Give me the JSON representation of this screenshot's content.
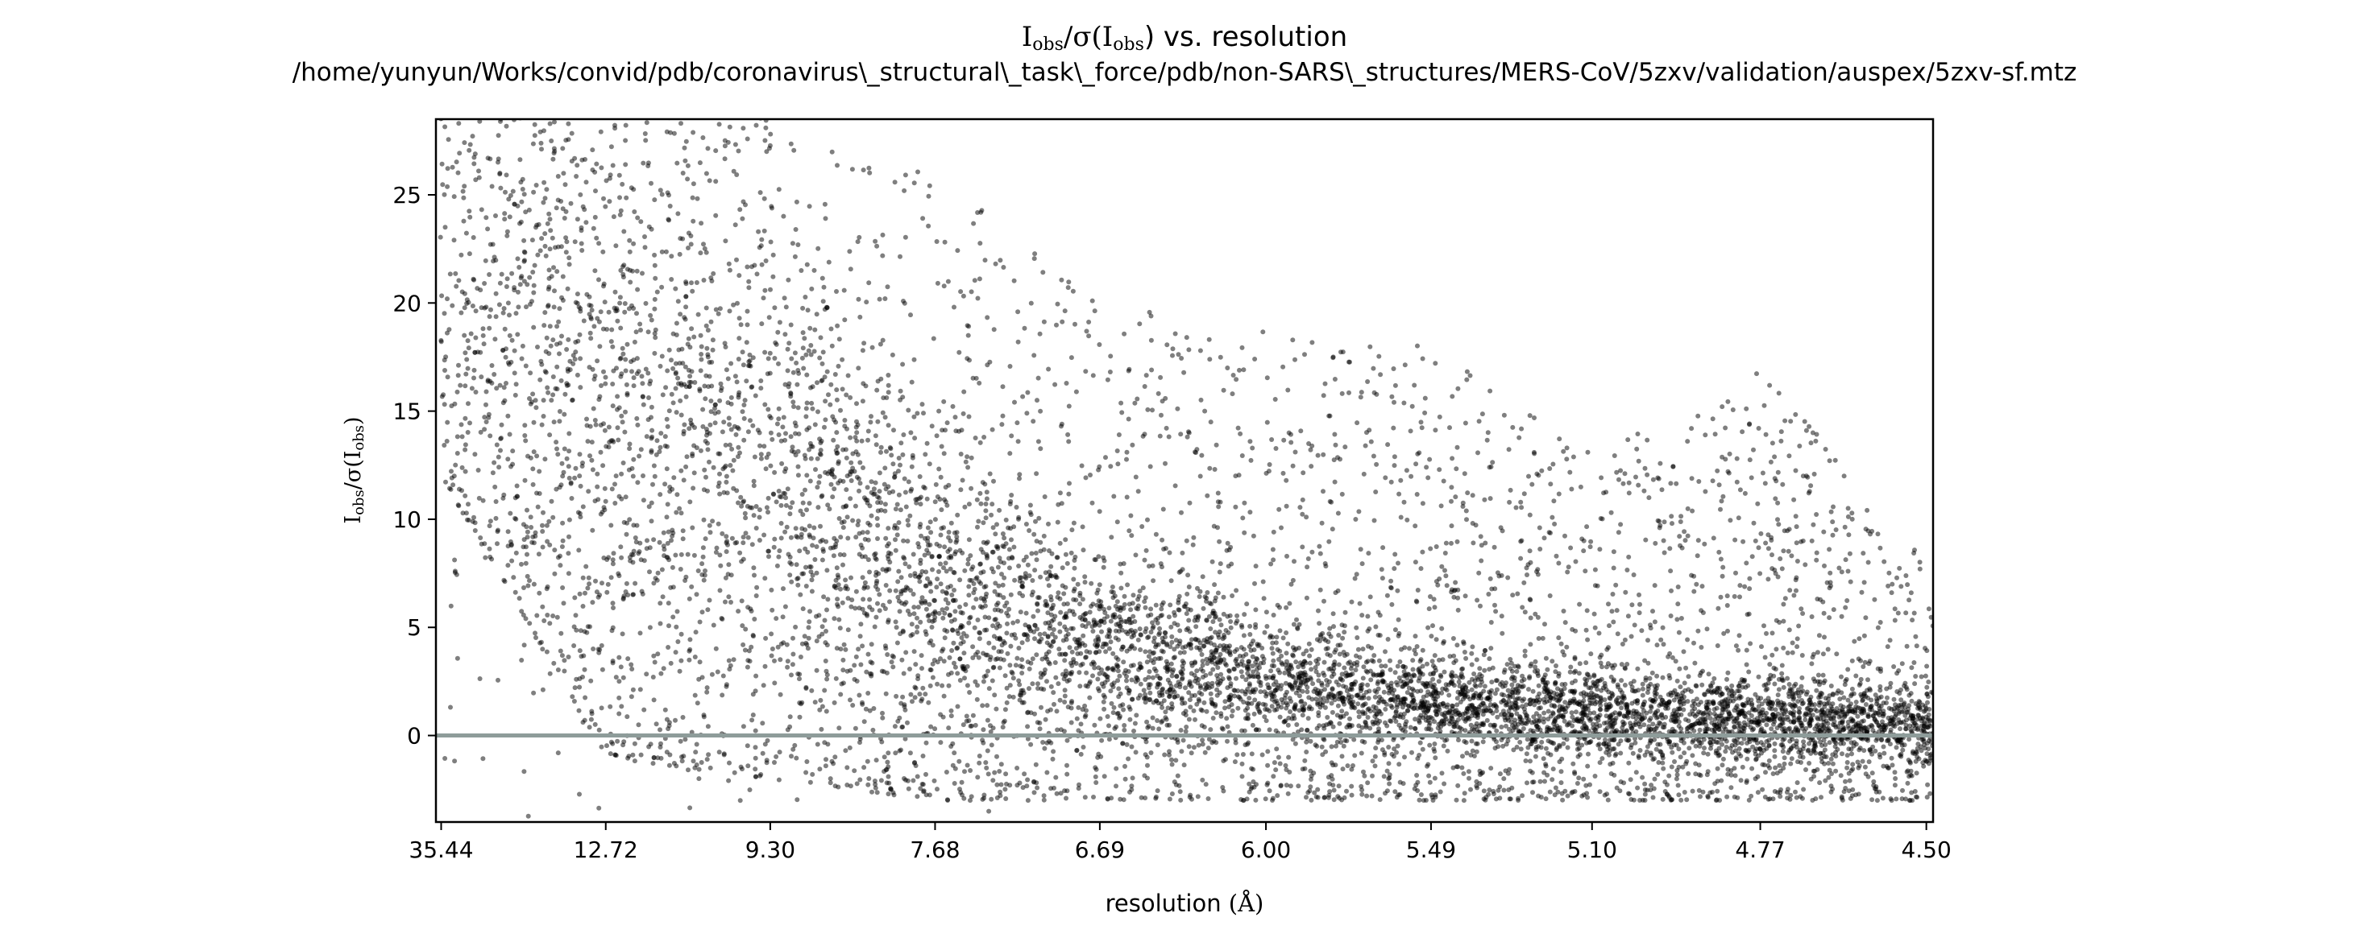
{
  "chart_data": {
    "type": "scatter",
    "title_line1_prefix": "I",
    "title_line1_sub1": "obs",
    "title_line1_mid": "/σ(I",
    "title_line1_sub2": "obs",
    "title_line1_suffix": ") vs. resolution",
    "title_line2": "/home/yunyun/Works/convid/pdb/coronavirus\\_structural\\_task\\_force/pdb/non-SARS\\_structures/MERS-CoV/5zxv/validation/auspex/5zxv-sf.mtz",
    "xlabel_prefix": "resolution ",
    "xlabel_unit": "(Å)",
    "ylabel_prefix": "I",
    "ylabel_sub1": "obs",
    "ylabel_mid": "/σ(I",
    "ylabel_sub2": "obs",
    "ylabel_suffix": ")",
    "x_axis_scale": "reciprocal-squared resolution (1/d²)",
    "xlim_resolution_A": [
      40.0,
      4.49
    ],
    "ylim": [
      -4,
      28.5
    ],
    "x_ticks": [
      "35.44",
      "12.72",
      "9.30",
      "7.68",
      "6.69",
      "6.00",
      "5.49",
      "5.10",
      "4.77",
      "4.50"
    ],
    "x_tick_values": [
      35.44,
      12.72,
      9.3,
      7.68,
      6.69,
      6.0,
      5.49,
      5.1,
      4.77,
      4.5
    ],
    "y_ticks": [
      0,
      5,
      10,
      15,
      20,
      25
    ],
    "reference_line_y": 0,
    "grid": false,
    "legend": "none",
    "point_color": "#000000",
    "reference_line_color": "#8e9c9a",
    "series": [
      {
        "n_points": 9000,
        "distribution": [
          {
            "resolution_A": 35.44,
            "typical_y": 20,
            "y_spread": [
              12,
              28.5
            ]
          },
          {
            "resolution_A": 12.72,
            "typical_y": 17,
            "y_spread": [
              -1,
              28.5
            ]
          },
          {
            "resolution_A": 9.3,
            "typical_y": 12,
            "y_spread": [
              -2,
              28.5
            ]
          },
          {
            "resolution_A": 7.68,
            "typical_y": 7,
            "y_spread": [
              -3,
              26
            ]
          },
          {
            "resolution_A": 6.69,
            "typical_y": 4,
            "y_spread": [
              -3,
              20
            ]
          },
          {
            "resolution_A": 6.0,
            "typical_y": 2.5,
            "y_spread": [
              -3,
              19
            ]
          },
          {
            "resolution_A": 5.49,
            "typical_y": 1.5,
            "y_spread": [
              -3,
              18
            ]
          },
          {
            "resolution_A": 5.1,
            "typical_y": 1.0,
            "y_spread": [
              -3,
              13
            ]
          },
          {
            "resolution_A": 4.77,
            "typical_y": 0.7,
            "y_spread": [
              -3,
              17
            ]
          },
          {
            "resolution_A": 4.5,
            "typical_y": 0.5,
            "y_spread": [
              -3,
              8
            ]
          }
        ]
      }
    ]
  }
}
